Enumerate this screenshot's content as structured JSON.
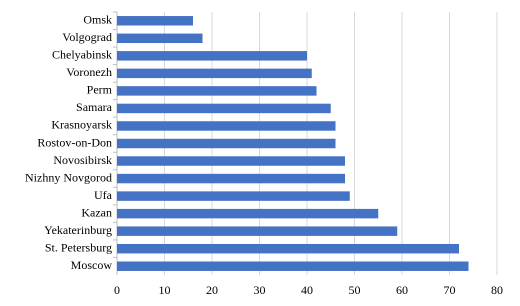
{
  "chart_data": {
    "type": "hbar",
    "categories": [
      "Omsk",
      "Volgograd",
      "Chelyabinsk",
      "Voronezh",
      "Perm",
      "Samara",
      "Krasnoyarsk",
      "Rostov-on-Don",
      "Novosibirsk",
      "Nizhny Novgorod",
      "Ufa",
      "Kazan",
      "Yekaterinburg",
      "St. Petersburg",
      "Moscow"
    ],
    "values": [
      16,
      18,
      40,
      41,
      42,
      45,
      46,
      46,
      48,
      48,
      49,
      55,
      59,
      72,
      74
    ],
    "color": "#4472c4",
    "xlim": [
      0,
      80
    ],
    "xticks": [
      0,
      10,
      20,
      30,
      40,
      50,
      60,
      70,
      80
    ],
    "grid": true
  }
}
